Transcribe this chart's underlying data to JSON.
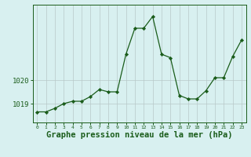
{
  "x": [
    0,
    1,
    2,
    3,
    4,
    5,
    6,
    7,
    8,
    9,
    10,
    11,
    12,
    13,
    14,
    15,
    16,
    17,
    18,
    19,
    20,
    21,
    22,
    23
  ],
  "y": [
    1018.65,
    1018.65,
    1018.8,
    1019.0,
    1019.1,
    1019.1,
    1019.3,
    1019.6,
    1019.5,
    1019.5,
    1021.1,
    1022.2,
    1022.2,
    1022.7,
    1021.1,
    1020.95,
    1019.35,
    1019.2,
    1019.2,
    1019.55,
    1020.1,
    1020.1,
    1021.0,
    1021.7
  ],
  "line_color": "#1a5c1a",
  "marker": "D",
  "marker_size": 2.2,
  "bg_color": "#d8f0f0",
  "grid_color": "#b8c8c8",
  "xlabel": "Graphe pression niveau de la mer (hPa)",
  "xlabel_fontsize": 7.5,
  "ytick_labels": [
    "1019",
    "1020"
  ],
  "ytick_values": [
    1019,
    1020
  ],
  "ylim": [
    1018.2,
    1023.2
  ],
  "xlim": [
    -0.5,
    23.5
  ],
  "tick_color": "#1a5c1a",
  "spine_color": "#1a5c1a"
}
